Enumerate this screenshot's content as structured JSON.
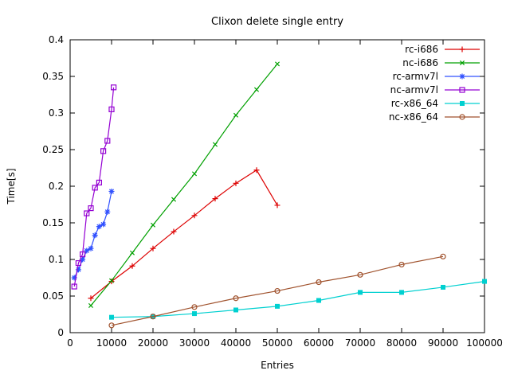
{
  "chart_data": {
    "type": "line",
    "title": "Clixon delete single entry",
    "xlabel": "Entries",
    "ylabel": "Time[s]",
    "xlim": [
      0,
      100000
    ],
    "ylim": [
      0,
      0.4
    ],
    "xticks": [
      0,
      10000,
      20000,
      30000,
      40000,
      50000,
      60000,
      70000,
      80000,
      90000,
      100000
    ],
    "yticks": [
      0,
      0.05,
      0.1,
      0.15,
      0.2,
      0.25,
      0.3,
      0.35,
      0.4
    ],
    "grid": false,
    "legend_position": "top-right-inside",
    "series": [
      {
        "name": "rc-i686",
        "color": "#dd0000",
        "marker": "plus",
        "x": [
          5000,
          10000,
          15000,
          20000,
          25000,
          30000,
          35000,
          40000,
          45000,
          50000
        ],
        "y": [
          0.047,
          0.07,
          0.091,
          0.115,
          0.138,
          0.16,
          0.183,
          0.204,
          0.222,
          0.174
        ]
      },
      {
        "name": "nc-i686",
        "color": "#00a000",
        "marker": "cross",
        "x": [
          5000,
          10000,
          15000,
          20000,
          25000,
          30000,
          35000,
          40000,
          45000,
          50000
        ],
        "y": [
          0.037,
          0.071,
          0.109,
          0.147,
          0.182,
          0.217,
          0.257,
          0.297,
          0.332,
          0.367
        ]
      },
      {
        "name": "rc-armv7l",
        "color": "#3050ff",
        "marker": "asterisk",
        "x": [
          1000,
          2000,
          3000,
          4000,
          5000,
          6000,
          7000,
          8000,
          9000,
          10000
        ],
        "y": [
          0.075,
          0.086,
          0.1,
          0.112,
          0.115,
          0.133,
          0.145,
          0.148,
          0.165,
          0.193
        ]
      },
      {
        "name": "nc-armv7l",
        "color": "#9400d3",
        "marker": "square-open",
        "x": [
          1000,
          2000,
          3000,
          4000,
          5000,
          6000,
          7000,
          8000,
          9000,
          10000,
          10500
        ],
        "y": [
          0.063,
          0.095,
          0.107,
          0.163,
          0.17,
          0.198,
          0.205,
          0.248,
          0.262,
          0.305,
          0.335
        ]
      },
      {
        "name": "rc-x86_64",
        "color": "#00d0d0",
        "marker": "square-filled",
        "x": [
          10000,
          20000,
          30000,
          40000,
          50000,
          60000,
          70000,
          80000,
          90000,
          100000
        ],
        "y": [
          0.021,
          0.022,
          0.026,
          0.031,
          0.036,
          0.044,
          0.055,
          0.055,
          0.062,
          0.07
        ]
      },
      {
        "name": "nc-x86_64",
        "color": "#a0522d",
        "marker": "circle-open",
        "x": [
          10000,
          20000,
          30000,
          40000,
          50000,
          60000,
          70000,
          80000,
          90000
        ],
        "y": [
          0.01,
          0.022,
          0.035,
          0.047,
          0.057,
          0.069,
          0.079,
          0.093,
          0.104
        ]
      }
    ]
  }
}
